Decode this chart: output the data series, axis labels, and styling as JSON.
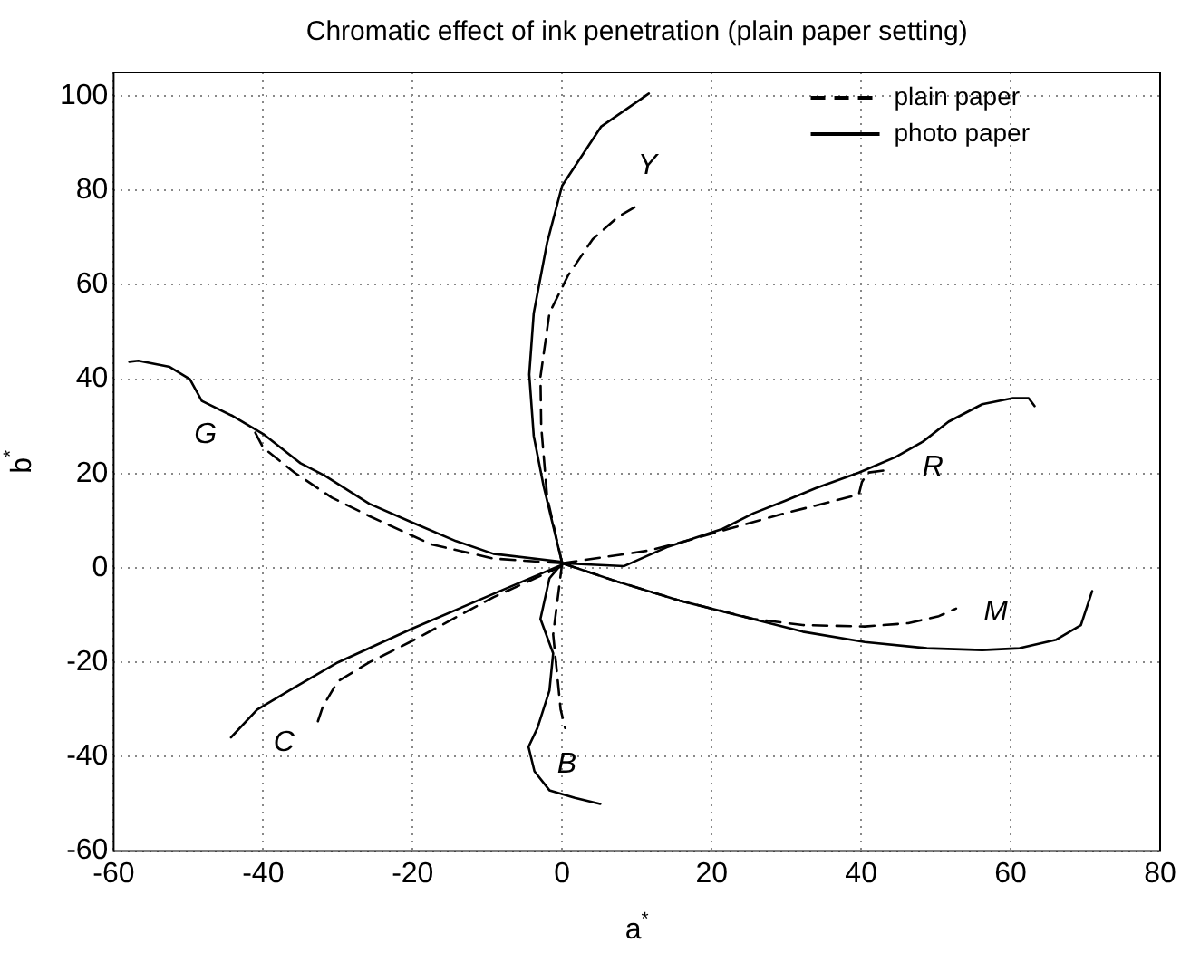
{
  "chart_data": {
    "type": "line",
    "title": "Chromatic effect of ink penetration (plain paper setting)",
    "xlabel": "a$^{*}$",
    "ylabel": "b$^{*}$",
    "xlim": [
      -60,
      80
    ],
    "xticks": [
      -60,
      -40,
      -20,
      0,
      20,
      40,
      60,
      80
    ],
    "ylim": [
      -60,
      105
    ],
    "yticks": [
      -60,
      -40,
      -20,
      0,
      20,
      40,
      60,
      80,
      100
    ],
    "grid": true,
    "legend": "top right",
    "marker": "none",
    "annotations": [
      "Y",
      "R",
      "M",
      "B",
      "C",
      "G"
    ],
    "series": [
      {
        "name": "plain paper",
        "color": "#000000",
        "line_style": "dashed",
        "x": [
          0,
          -2,
          -2.8,
          -2.9,
          -1.7,
          0.8,
          4.1,
          7.4,
          10.3,
          null,
          0,
          11.6,
          16.5,
          22.3,
          29.8,
          36.4,
          39.7,
          40.1,
          40.9,
          43.8,
          null,
          0,
          7.4,
          15.7,
          25.6,
          32.2,
          40.5,
          46.3,
          50.4,
          52.7,
          null,
          0,
          -1.2,
          -0.7,
          -0.2,
          0.4,
          null,
          0,
          -9.2,
          -20,
          -25.8,
          -30,
          -32,
          -32.7,
          null,
          0,
          -9.2,
          -17.5,
          -25.8,
          -30.8,
          -35.8,
          -40,
          -41.3
        ],
        "values": [
          1,
          15,
          30,
          40.5,
          54,
          62,
          69.7,
          74.3,
          77,
          null,
          1,
          3.7,
          5.7,
          8.3,
          11.6,
          14.2,
          15.6,
          18.2,
          20.2,
          20.8,
          null,
          1,
          -2.9,
          -6.9,
          -10.8,
          -12.1,
          -12.4,
          -11.7,
          -10.2,
          -8.6,
          null,
          1,
          -14.1,
          -22,
          -30,
          -33.9,
          null,
          0.4,
          -6.2,
          -15.4,
          -20,
          -24,
          -29.3,
          -32.6,
          null,
          1,
          2,
          5,
          11,
          14.9,
          20.2,
          25.5,
          29.4
        ]
      },
      {
        "name": "photo paper",
        "color": "#000000",
        "line_style": "solid",
        "x": [
          0,
          -2.5,
          -3.8,
          -4.4,
          -3.8,
          -2,
          0,
          2.5,
          5.2,
          11.6,
          null,
          0,
          8.3,
          14,
          21.5,
          25.6,
          29.8,
          33.9,
          39.7,
          44.6,
          48.3,
          51.7,
          56.2,
          60.3,
          62.4,
          63.2,
          null,
          0,
          7.4,
          15.7,
          24,
          32.2,
          40.5,
          48.8,
          56.2,
          61.2,
          66.1,
          69.4,
          70.9,
          null,
          0,
          -1.7,
          -2.9,
          -1.2,
          -1.7,
          -3.3,
          -4.5,
          -3.7,
          -1.7,
          1.7,
          5.1,
          null,
          0,
          -9.2,
          -20,
          -30,
          -35.8,
          -40.8,
          -44.3,
          null,
          0,
          -9.2,
          -14.2,
          -20,
          -25.8,
          -31.7,
          -35,
          -40,
          -44.2,
          -48.2,
          -49.8,
          -52.5,
          -56.7,
          -57.9
        ],
        "values": [
          1,
          17.5,
          28,
          41,
          54,
          69,
          81,
          87,
          93.5,
          100.5,
          null,
          1,
          0.4,
          4.4,
          8.3,
          11.6,
          14.2,
          16.9,
          20.2,
          23.5,
          26.8,
          31,
          34.7,
          36,
          36,
          34.3,
          null,
          1,
          -2.9,
          -6.9,
          -10.2,
          -13.5,
          -15.7,
          -17,
          -17.4,
          -17,
          -15.2,
          -12.1,
          -4.9,
          null,
          1,
          -2.2,
          -10.8,
          -18.1,
          -26,
          -33.9,
          -37.9,
          -43.1,
          -47.1,
          -48.7,
          -50,
          null,
          0.7,
          -5.5,
          -12.8,
          -20,
          -25.3,
          -30,
          -35.9,
          null,
          1.3,
          3,
          5.7,
          9.6,
          13.6,
          19.5,
          22.2,
          28.4,
          32.3,
          35.4,
          40,
          42.6,
          43.9,
          43.7
        ]
      }
    ]
  }
}
